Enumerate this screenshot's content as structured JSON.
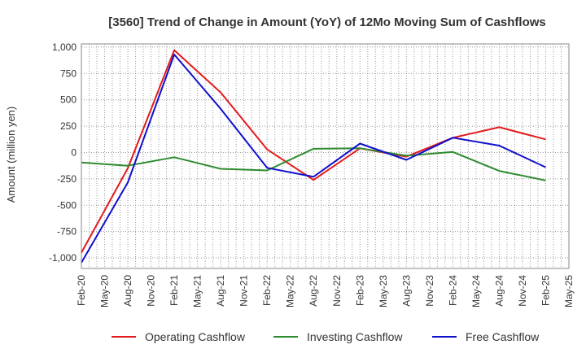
{
  "chart_data": {
    "type": "line",
    "title": "[3560]  Trend of Change in Amount (YoY) of 12Mo Moving Sum of Cashflows",
    "xlabel": "",
    "ylabel": "Amount (million yen)",
    "ylim": [
      -1100,
      1030
    ],
    "yticks": [
      1000,
      750,
      500,
      250,
      0,
      -250,
      -500,
      -750,
      -1000
    ],
    "ytick_labels": [
      "1,000",
      "750",
      "500",
      "250",
      "0",
      "-250",
      "-500",
      "-750",
      "-1,000"
    ],
    "categories": [
      "Feb-20",
      "May-20",
      "Aug-20",
      "Nov-20",
      "Feb-21",
      "May-21",
      "Aug-21",
      "Nov-21",
      "Feb-22",
      "May-22",
      "Aug-22",
      "Nov-22",
      "Feb-23",
      "May-23",
      "Aug-23",
      "Nov-23",
      "Feb-24",
      "May-24",
      "Aug-24",
      "Nov-24",
      "Feb-25",
      "May-25"
    ],
    "grid": true,
    "legend_position": "bottom",
    "series": [
      {
        "name": "Operating Cashflow",
        "color": "#e31a1c",
        "x": [
          "Feb-20",
          "Aug-20",
          "Feb-21",
          "Aug-21",
          "Feb-22",
          "Aug-22",
          "Feb-23",
          "Aug-23",
          "Feb-24",
          "Aug-24",
          "Feb-25"
        ],
        "values": [
          -950,
          -150,
          970,
          570,
          30,
          -260,
          40,
          -40,
          140,
          240,
          125
        ]
      },
      {
        "name": "Investing Cashflow",
        "color": "#2e8b2e",
        "x": [
          "Feb-20",
          "Aug-20",
          "Feb-21",
          "Aug-21",
          "Feb-22",
          "Aug-22",
          "Feb-23",
          "Aug-23",
          "Feb-24",
          "Aug-24",
          "Feb-25"
        ],
        "values": [
          -95,
          -125,
          -45,
          -155,
          -170,
          35,
          40,
          -30,
          5,
          -175,
          -265
        ]
      },
      {
        "name": "Free Cashflow",
        "color": "#1010cc",
        "x": [
          "Feb-20",
          "Aug-20",
          "Feb-21",
          "Aug-21",
          "Feb-22",
          "Aug-22",
          "Feb-23",
          "Aug-23",
          "Feb-24",
          "Aug-24",
          "Feb-25"
        ],
        "values": [
          -1045,
          -285,
          930,
          415,
          -145,
          -230,
          85,
          -70,
          140,
          65,
          -140
        ]
      }
    ]
  }
}
